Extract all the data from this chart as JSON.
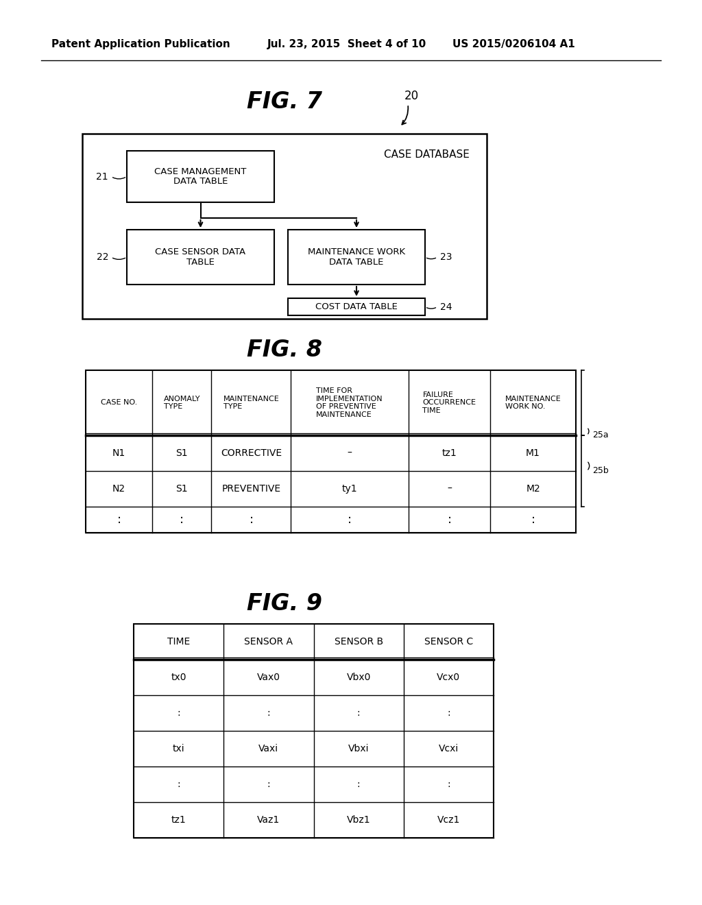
{
  "header_text": "Patent Application Publication",
  "date_text": "Jul. 23, 2015  Sheet 4 of 10",
  "patent_text": "US 2015/0206104 A1",
  "fig7_title": "FIG. 7",
  "fig8_title": "FIG. 8",
  "fig9_title": "FIG. 9",
  "background_color": "#ffffff",
  "fig7_label": "20",
  "fig7_outer_label": "CASE DATABASE",
  "fig8_headers": [
    "CASE NO.",
    "ANOMALY\nTYPE",
    "MAINTENANCE\nTYPE",
    "TIME FOR\nIMPLEMENTATION\nOF PREVENTIVE\nMAINTENANCE",
    "FAILURE\nOCCURRENCE\nTIME",
    "MAINTENANCE\nWORK NO."
  ],
  "fig8_row1": [
    "N1",
    "S1",
    "CORRECTIVE",
    "–",
    "tz1",
    "M1"
  ],
  "fig8_row2": [
    "N2",
    "S1",
    "PREVENTIVE",
    "ty1",
    "–",
    "M2"
  ],
  "fig8_row3": [
    ":",
    ":",
    ":",
    ":",
    ":",
    ":"
  ],
  "fig9_headers": [
    "TIME",
    "SENSOR A",
    "SENSOR B",
    "SENSOR C"
  ],
  "fig9_rows": [
    [
      "tx0",
      "Vax0",
      "Vbx0",
      "Vcx0"
    ],
    [
      ":",
      ":",
      ":",
      ":"
    ],
    [
      "txi",
      "Vaxi",
      "Vbxi",
      "Vcxi"
    ],
    [
      ":",
      ":",
      ":",
      ":"
    ],
    [
      "tz1",
      "Vaz1",
      "Vbz1",
      "Vcz1"
    ]
  ]
}
